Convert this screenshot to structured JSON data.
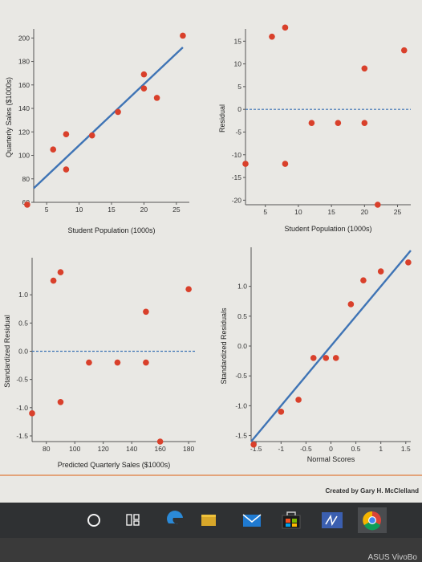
{
  "chart_data": [
    {
      "id": "top-left",
      "type": "scatter",
      "title": "",
      "xlabel": "Student Population (1000s)",
      "ylabel": "Quarterly Sales ($1000s)",
      "xlim": [
        3,
        27
      ],
      "ylim": [
        60,
        205
      ],
      "x_ticks": [
        5,
        10,
        15,
        20,
        25
      ],
      "y_ticks": [
        60,
        80,
        100,
        120,
        140,
        160,
        180,
        200
      ],
      "points": [
        [
          2,
          58
        ],
        [
          6,
          105
        ],
        [
          8,
          88
        ],
        [
          8,
          118
        ],
        [
          12,
          117
        ],
        [
          16,
          137
        ],
        [
          20,
          157
        ],
        [
          20,
          169
        ],
        [
          22,
          149
        ],
        [
          26,
          202
        ]
      ],
      "line": [
        [
          3,
          72
        ],
        [
          26,
          192
        ]
      ],
      "zero_line": false
    },
    {
      "id": "top-right",
      "type": "scatter",
      "title": "",
      "xlabel": "Student Population (1000s)",
      "ylabel": "Residual",
      "xlim": [
        2,
        27
      ],
      "ylim": [
        -21,
        17
      ],
      "x_ticks": [
        5,
        10,
        15,
        20,
        25
      ],
      "y_ticks": [
        -20,
        -15,
        -10,
        -5,
        0,
        5,
        10,
        15
      ],
      "points": [
        [
          2,
          -12
        ],
        [
          6,
          16
        ],
        [
          8,
          18
        ],
        [
          8,
          -12
        ],
        [
          12,
          -3
        ],
        [
          16,
          -3
        ],
        [
          20,
          -3
        ],
        [
          20,
          9
        ],
        [
          22,
          -21
        ],
        [
          26,
          13
        ]
      ],
      "line": null,
      "zero_line": true
    },
    {
      "id": "bottom-left",
      "type": "scatter",
      "title": "",
      "xlabel": "Predicted Quarterly Sales ($1000s)",
      "ylabel": "Standardized Residual",
      "xlim": [
        70,
        185
      ],
      "ylim": [
        -1.6,
        1.6
      ],
      "x_ticks": [
        80,
        100,
        120,
        140,
        160,
        180
      ],
      "y_ticks": [
        -1.5,
        -1.0,
        -0.5,
        0.0,
        0.5,
        1.0
      ],
      "points": [
        [
          70,
          -1.1
        ],
        [
          85,
          1.25
        ],
        [
          90,
          1.4
        ],
        [
          90,
          -0.9
        ],
        [
          110,
          -0.2
        ],
        [
          130,
          -0.2
        ],
        [
          150,
          -0.2
        ],
        [
          150,
          0.7
        ],
        [
          160,
          -1.6
        ],
        [
          180,
          1.1
        ]
      ],
      "line": null,
      "zero_line": true
    },
    {
      "id": "bottom-right",
      "type": "scatter",
      "title": "",
      "xlabel": "Normal Scores",
      "ylabel": "Standardized Residuals",
      "xlim": [
        -1.6,
        1.6
      ],
      "ylim": [
        -1.6,
        1.6
      ],
      "x_ticks": [
        -1.5,
        -1.0,
        -0.5,
        0.0,
        0.5,
        1.0,
        1.5
      ],
      "y_ticks": [
        -1.5,
        -1.0,
        -0.5,
        0.0,
        0.5,
        1.0
      ],
      "points": [
        [
          -1.55,
          -1.65
        ],
        [
          -1.0,
          -1.1
        ],
        [
          -0.65,
          -0.9
        ],
        [
          -0.35,
          -0.2
        ],
        [
          -0.1,
          -0.2
        ],
        [
          0.1,
          -0.2
        ],
        [
          0.4,
          0.7
        ],
        [
          0.65,
          1.1
        ],
        [
          1.0,
          1.25
        ],
        [
          1.55,
          1.4
        ]
      ],
      "line": [
        [
          -1.6,
          -1.6
        ],
        [
          1.6,
          1.6
        ]
      ],
      "zero_line": false
    }
  ],
  "credit": "Created by Gary H. McClelland",
  "taskbar": {
    "brand_text": "ASUS VivoBo"
  }
}
